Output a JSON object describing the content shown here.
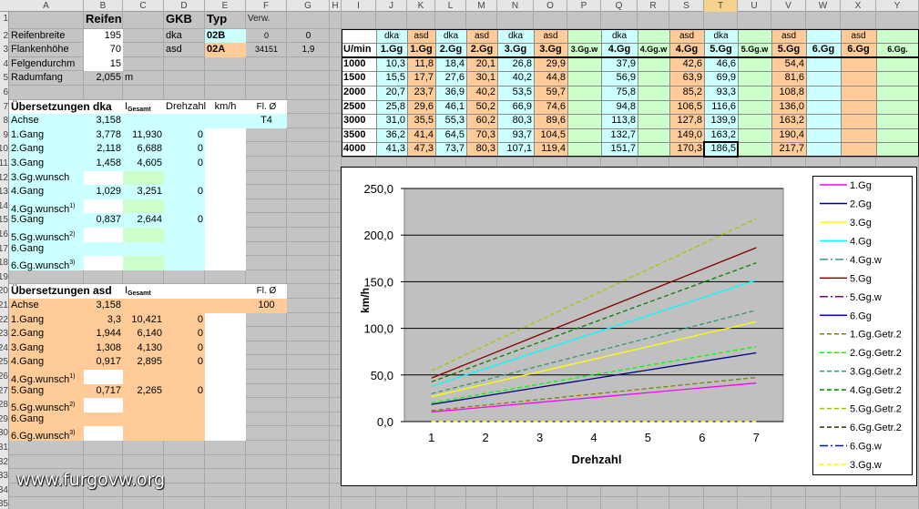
{
  "columns": [
    "A",
    "B",
    "C",
    "D",
    "E",
    "F",
    "G",
    "H",
    "I",
    "J",
    "K",
    "L",
    "M",
    "N",
    "O",
    "P",
    "Q",
    "R",
    "S",
    "T",
    "U",
    "V",
    "W",
    "X",
    "Y"
  ],
  "row_numbers": [
    1,
    2,
    3,
    4,
    5,
    6,
    7,
    8,
    9,
    10,
    11,
    12,
    13,
    14,
    15,
    16,
    17,
    18,
    19,
    20,
    21,
    22,
    23,
    24,
    25,
    26,
    27,
    28,
    29,
    30,
    31,
    32,
    33,
    34,
    35
  ],
  "tire": {
    "title": "Reifen",
    "rows": [
      {
        "label": "Reifenbreite",
        "value": "195"
      },
      {
        "label": "Flankenhöhe",
        "value": "70"
      },
      {
        "label": "Felgendurchm",
        "value": "15"
      },
      {
        "label": "Radumfang",
        "value": "2,055",
        "unit": "m"
      }
    ]
  },
  "gkb": {
    "title": "GKB",
    "type_header": "Typ",
    "usage_header": "Verw.",
    "rows": [
      {
        "name": "dka",
        "type": "02B",
        "a": "0",
        "b": "0"
      },
      {
        "name": "asd",
        "type": "02A",
        "a": "34151",
        "b": "1,9"
      }
    ]
  },
  "dka": {
    "title": "Übersetzungen dka",
    "i": "I",
    "i_sub": "Gesamt",
    "rpm_header": "Drehzahl",
    "speed_header": "km/h",
    "fl_header": "Fl. Ø",
    "axle": {
      "label": "Achse",
      "ratio": "3,158",
      "fl": "T4"
    },
    "gears": [
      {
        "label": "1.Gang",
        "ratio": "3,778",
        "total": "11,930",
        "rpm": "0"
      },
      {
        "label": "2.Gang",
        "ratio": "2,118",
        "total": "6,688",
        "rpm": "0"
      },
      {
        "label": "3.Gang",
        "ratio": "1,458",
        "total": "4,605",
        "rpm": "0"
      },
      {
        "label": "3.Gg.wunsch"
      },
      {
        "label": "4.Gang",
        "ratio": "1,029",
        "total": "3,251",
        "rpm": "0"
      },
      {
        "label": "4.Gg.wunsch",
        "note": "1)"
      },
      {
        "label": "5.Gang",
        "ratio": "0,837",
        "total": "2,644",
        "rpm": "0"
      },
      {
        "label": "5.Gg.wunsch",
        "note": "2)"
      },
      {
        "label": "6.Gang"
      },
      {
        "label": "6.Gg.wunsch",
        "note": "3)"
      }
    ]
  },
  "asd": {
    "title": "Übersetzungen asd",
    "i": "I",
    "i_sub": "Gesamt",
    "fl_header": "Fl. Ø",
    "axle": {
      "label": "Achse",
      "ratio": "3,158",
      "fl": "100"
    },
    "gears": [
      {
        "label": "1.Gang",
        "ratio": "3,3",
        "total": "10,421",
        "rpm": "0"
      },
      {
        "label": "2.Gang",
        "ratio": "1,944",
        "total": "6,140",
        "rpm": "0"
      },
      {
        "label": "3.Gang",
        "ratio": "1,308",
        "total": "4,130",
        "rpm": "0"
      },
      {
        "label": "4.Gang",
        "ratio": "0,917",
        "total": "2,895",
        "rpm": "0"
      },
      {
        "label": "4.Gg.wunsch",
        "note": "1)"
      },
      {
        "label": "5.Gang",
        "ratio": "0,717",
        "total": "2,265",
        "rpm": "0"
      },
      {
        "label": "5.Gg.wunsch",
        "note": "2)"
      },
      {
        "label": "6.Gang"
      },
      {
        "label": "6.Gg.wunsch",
        "note": "3)"
      }
    ]
  },
  "speed_table": {
    "rpm_header": "U/min",
    "variants": [
      "dka",
      "asd",
      "dka",
      "asd",
      "dka",
      "asd",
      null,
      "dka",
      null,
      "asd",
      "dka",
      null,
      "asd",
      null,
      "asd",
      null
    ],
    "gears": [
      "1.Gg",
      "1.Gg",
      "2.Gg",
      "2.Gg",
      "3.Gg",
      "3.Gg",
      "3.Gg.w",
      "4.Gg",
      "4.Gg.w",
      "4.Gg",
      "5.Gg",
      "5.Gg.w",
      "5.Gg",
      "6.Gg",
      "6.Gg",
      "6.Gg."
    ],
    "rows": [
      {
        "rpm": "1000",
        "values": [
          "10,3",
          "11,8",
          "18,4",
          "20,1",
          "26,8",
          "29,9",
          null,
          "37,9",
          null,
          "42,6",
          "46,6",
          null,
          "54,4",
          null,
          null,
          null
        ]
      },
      {
        "rpm": "1500",
        "values": [
          "15,5",
          "17,7",
          "27,6",
          "30,1",
          "40,2",
          "44,8",
          null,
          "56,9",
          null,
          "63,9",
          "69,9",
          null,
          "81,6",
          null,
          null,
          null
        ]
      },
      {
        "rpm": "2000",
        "values": [
          "20,7",
          "23,7",
          "36,9",
          "40,2",
          "53,5",
          "59,7",
          null,
          "75,8",
          null,
          "85,2",
          "93,3",
          null,
          "108,8",
          null,
          null,
          null
        ]
      },
      {
        "rpm": "2500",
        "values": [
          "25,8",
          "29,6",
          "46,1",
          "50,2",
          "66,9",
          "74,6",
          null,
          "94,8",
          null,
          "106,5",
          "116,6",
          null,
          "136,0",
          null,
          null,
          null
        ]
      },
      {
        "rpm": "3000",
        "values": [
          "31,0",
          "35,5",
          "55,3",
          "60,2",
          "80,3",
          "89,6",
          null,
          "113,8",
          null,
          "127,8",
          "139,9",
          null,
          "163,2",
          null,
          null,
          null
        ]
      },
      {
        "rpm": "3500",
        "values": [
          "36,2",
          "41,4",
          "64,5",
          "70,3",
          "93,7",
          "104,5",
          null,
          "132,7",
          null,
          "149,0",
          "163,2",
          null,
          "190,4",
          null,
          null,
          null
        ]
      },
      {
        "rpm": "4000",
        "values": [
          "41,3",
          "47,3",
          "73,7",
          "80,3",
          "107,1",
          "119,4",
          null,
          "151,7",
          null,
          "170,3",
          "186,5",
          null,
          "217,7",
          null,
          null,
          null
        ]
      }
    ]
  },
  "chart_data": {
    "type": "line",
    "x_label": "Drehzahl",
    "y_label": "km/h",
    "categories": [
      1,
      2,
      3,
      4,
      5,
      6,
      7
    ],
    "ylim": [
      0,
      250
    ],
    "yticks": [
      {
        "value": 0,
        "label": "0,0"
      },
      {
        "value": 50,
        "label": "50,0"
      },
      {
        "value": 100,
        "label": "100,0"
      },
      {
        "value": 150,
        "label": "150,0"
      },
      {
        "value": 200,
        "label": "200,0"
      },
      {
        "value": 250,
        "label": "250,0"
      }
    ],
    "grid": true,
    "legend": "right",
    "series": [
      {
        "name": "1.Gg",
        "color": "#ff00ff",
        "style": "solid",
        "values": [
          10.3,
          15.5,
          20.7,
          25.8,
          31.0,
          36.2,
          41.3
        ]
      },
      {
        "name": "2.Gg",
        "color": "#000080",
        "style": "solid",
        "values": [
          18.4,
          27.6,
          36.9,
          46.1,
          55.3,
          64.5,
          73.7
        ]
      },
      {
        "name": "3.Gg",
        "color": "#ffff00",
        "style": "solid",
        "values": [
          26.8,
          40.2,
          53.5,
          66.9,
          80.3,
          93.7,
          107.1
        ]
      },
      {
        "name": "4.Gg",
        "color": "#00ffff",
        "style": "solid",
        "values": [
          37.9,
          56.9,
          75.8,
          94.8,
          113.8,
          132.7,
          151.7
        ]
      },
      {
        "name": "4.Gg.w",
        "color": "#339999",
        "style": "dashdot",
        "values": [
          null,
          null,
          null,
          null,
          null,
          null,
          null
        ]
      },
      {
        "name": "5.Gg",
        "color": "#800000",
        "style": "solid",
        "values": [
          46.6,
          69.9,
          93.3,
          116.6,
          139.9,
          163.2,
          186.5
        ]
      },
      {
        "name": "5.Gg.w",
        "color": "#800080",
        "style": "dashdot",
        "values": [
          null,
          null,
          null,
          null,
          null,
          null,
          null
        ]
      },
      {
        "name": "6.Gg",
        "color": "#0000ff",
        "style": "solid",
        "values": [
          null,
          null,
          null,
          null,
          null,
          null,
          null
        ]
      },
      {
        "name": "1.Gg.Getr.2",
        "color": "#808000",
        "style": "dash",
        "values": [
          11.8,
          17.7,
          23.7,
          29.6,
          35.5,
          41.4,
          47.3
        ]
      },
      {
        "name": "2.Gg.Getr.2",
        "color": "#00ff00",
        "style": "dash",
        "values": [
          20.1,
          30.1,
          40.2,
          50.2,
          60.2,
          70.3,
          80.3
        ]
      },
      {
        "name": "3.Gg.Getr.2",
        "color": "#339966",
        "style": "dash",
        "values": [
          29.9,
          44.8,
          59.7,
          74.6,
          89.6,
          104.5,
          119.4
        ]
      },
      {
        "name": "4.Gg.Getr.2",
        "color": "#008000",
        "style": "dash",
        "values": [
          42.6,
          63.9,
          85.2,
          106.5,
          127.8,
          149.0,
          170.3
        ]
      },
      {
        "name": "5.Gg.Getr.2",
        "color": "#99cc00",
        "style": "dash",
        "values": [
          54.4,
          81.6,
          108.8,
          136.0,
          163.2,
          190.4,
          217.7
        ]
      },
      {
        "name": "6.Gg.Getr.2",
        "color": "#333300",
        "style": "dash",
        "values": [
          null,
          null,
          null,
          null,
          null,
          null,
          null
        ]
      },
      {
        "name": "6.Gg.w",
        "color": "#0000ff",
        "style": "dashdot",
        "values": [
          null,
          null,
          null,
          null,
          null,
          null,
          null
        ]
      },
      {
        "name": "3.Gg.w",
        "color": "#ffff00",
        "style": "dash",
        "values": [
          0,
          0,
          0,
          0,
          0,
          0,
          0
        ]
      }
    ]
  },
  "watermark": "www.furgovw.org"
}
